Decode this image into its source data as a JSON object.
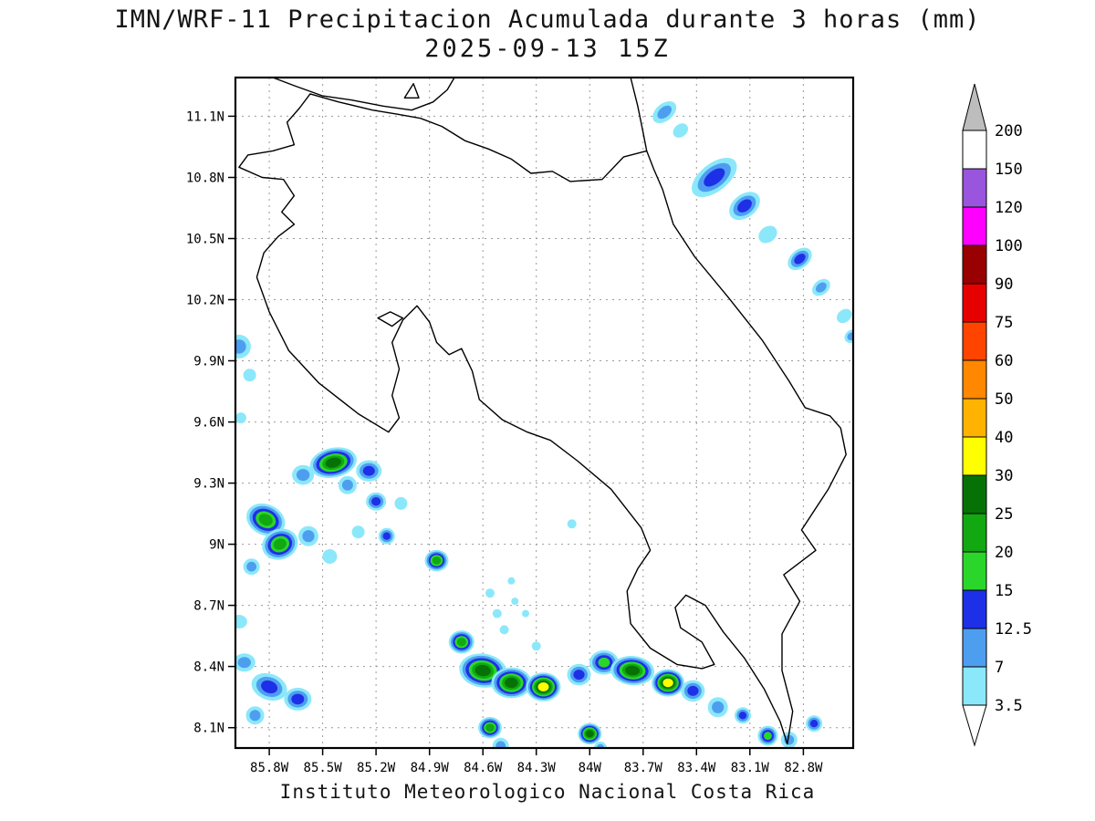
{
  "header": {
    "title": "IMN/WRF-11 Precipitacion Acumulada durante 3 horas (mm)",
    "subtitle": "2025-09-13 15Z"
  },
  "footer": {
    "credit": "Instituto Meteorologico Nacional Costa Rica"
  },
  "axes": {
    "lat_labels": [
      "11.1N",
      "10.8N",
      "10.5N",
      "10.2N",
      "9.9N",
      "9.6N",
      "9.3N",
      "9N",
      "8.7N",
      "8.4N",
      "8.1N"
    ],
    "lat_values": [
      11.1,
      10.8,
      10.5,
      10.2,
      9.9,
      9.6,
      9.3,
      9.0,
      8.7,
      8.4,
      8.1
    ],
    "lon_labels": [
      "85.8W",
      "85.5W",
      "85.2W",
      "84.9W",
      "84.6W",
      "84.3W",
      "84W",
      "83.7W",
      "83.4W",
      "83.1W",
      "82.8W"
    ],
    "lon_values": [
      85.8,
      85.5,
      85.2,
      84.9,
      84.6,
      84.3,
      84.0,
      83.7,
      83.4,
      83.1,
      82.8
    ]
  },
  "colorbar": {
    "labels": [
      "200",
      "150",
      "120",
      "100",
      "90",
      "75",
      "60",
      "50",
      "40",
      "30",
      "25",
      "20",
      "15",
      "12.5",
      "7",
      "3.5"
    ],
    "colors": [
      "#bdbdbd",
      "#ffffff",
      "#9955dd",
      "#ff00ff",
      "#990000",
      "#e60000",
      "#ff4400",
      "#ff8800",
      "#ffb300",
      "#ffff00",
      "#067206",
      "#11a811",
      "#2bd62b",
      "#1e2fe8",
      "#4e9ef0",
      "#8be8fa",
      "#ffffff"
    ]
  },
  "chart_data": {
    "type": "heatmap",
    "title": "IMN/WRF-11 Precipitacion Acumulada durante 3 horas (mm)",
    "valid_time": "2025-09-13 15Z",
    "units": "mm",
    "lat_tick_range": [
      8.1,
      11.1
    ],
    "lon_west_tick_range": [
      82.8,
      85.8
    ],
    "levels_mm": [
      3.5,
      7,
      12.5,
      15,
      20,
      25,
      30,
      40,
      50,
      60,
      75,
      90,
      100,
      120,
      150,
      200
    ],
    "cell_fields": [
      "lon_west_deg",
      "lat_north_deg",
      "radius_px",
      "aspect",
      "rotation_deg",
      "intensity_depth"
    ],
    "precip_cells": [
      [
        83.58,
        11.12,
        15,
        1.6,
        -40,
        2
      ],
      [
        83.49,
        11.03,
        9,
        1.3,
        -40,
        1
      ],
      [
        83.3,
        10.8,
        29,
        1.9,
        -38,
        3
      ],
      [
        83.13,
        10.66,
        19,
        1.5,
        -38,
        3
      ],
      [
        83.0,
        10.52,
        11,
        1.3,
        -38,
        1
      ],
      [
        82.82,
        10.4,
        15,
        1.5,
        -40,
        3
      ],
      [
        82.7,
        10.26,
        11,
        1.4,
        -40,
        2
      ],
      [
        82.57,
        10.12,
        9,
        1.3,
        -40,
        1
      ],
      [
        82.53,
        10.02,
        8,
        1.2,
        -40,
        2
      ],
      [
        85.97,
        9.97,
        13,
        1.0,
        0,
        2
      ],
      [
        85.91,
        9.83,
        7,
        1,
        0,
        1
      ],
      [
        85.96,
        9.62,
        6,
        1,
        0,
        1
      ],
      [
        85.44,
        9.4,
        26,
        1.6,
        -12,
        6
      ],
      [
        85.24,
        9.36,
        14,
        1.2,
        0,
        3
      ],
      [
        85.61,
        9.34,
        12,
        1.1,
        0,
        2
      ],
      [
        85.36,
        9.29,
        10,
        1,
        0,
        2
      ],
      [
        85.2,
        9.21,
        11,
        1.1,
        0,
        3
      ],
      [
        85.06,
        9.2,
        7,
        1,
        0,
        1
      ],
      [
        85.82,
        9.12,
        22,
        1.3,
        25,
        5
      ],
      [
        85.74,
        9.0,
        20,
        1.2,
        -20,
        5
      ],
      [
        85.58,
        9.04,
        11,
        1,
        0,
        2
      ],
      [
        85.9,
        8.89,
        9,
        1,
        0,
        2
      ],
      [
        85.46,
        8.94,
        8,
        1,
        0,
        1
      ],
      [
        85.14,
        9.04,
        9,
        1,
        0,
        3
      ],
      [
        85.3,
        9.06,
        7,
        1,
        0,
        1
      ],
      [
        84.86,
        8.92,
        13,
        1.1,
        0,
        5
      ],
      [
        84.56,
        8.76,
        5,
        1,
        0,
        1
      ],
      [
        84.52,
        8.66,
        5,
        1,
        0,
        1
      ],
      [
        84.48,
        8.58,
        5,
        1,
        0,
        1
      ],
      [
        84.1,
        9.1,
        5,
        1,
        0,
        1
      ],
      [
        85.97,
        8.62,
        9,
        1.2,
        0,
        1
      ],
      [
        85.94,
        8.42,
        12,
        1.2,
        0,
        2
      ],
      [
        85.8,
        8.3,
        20,
        1.4,
        20,
        3
      ],
      [
        85.64,
        8.24,
        15,
        1.2,
        0,
        3
      ],
      [
        85.88,
        8.16,
        10,
        1,
        0,
        2
      ],
      [
        84.72,
        8.52,
        14,
        1.1,
        0,
        5
      ],
      [
        84.6,
        8.38,
        26,
        1.4,
        8,
        6
      ],
      [
        84.44,
        8.32,
        22,
        1.3,
        0,
        6
      ],
      [
        84.26,
        8.3,
        19,
        1.2,
        0,
        7
      ],
      [
        84.06,
        8.36,
        13,
        1.1,
        0,
        3
      ],
      [
        83.92,
        8.42,
        16,
        1.2,
        0,
        4
      ],
      [
        83.76,
        8.38,
        24,
        1.5,
        5,
        6
      ],
      [
        83.56,
        8.32,
        18,
        1.2,
        0,
        7
      ],
      [
        83.42,
        8.28,
        13,
        1.1,
        0,
        3
      ],
      [
        83.28,
        8.2,
        11,
        1,
        0,
        2
      ],
      [
        83.14,
        8.16,
        9,
        1,
        0,
        3
      ],
      [
        83.0,
        8.06,
        11,
        1,
        0,
        4
      ],
      [
        82.88,
        8.04,
        9,
        1,
        0,
        2
      ],
      [
        82.74,
        8.12,
        9,
        1,
        0,
        3
      ],
      [
        84.56,
        8.1,
        13,
        1.1,
        0,
        5
      ],
      [
        84.5,
        8.01,
        9,
        1,
        0,
        2
      ],
      [
        84.0,
        8.07,
        13,
        1.1,
        0,
        6
      ],
      [
        83.94,
        8.0,
        7,
        1,
        0,
        2
      ],
      [
        84.36,
        8.66,
        4,
        1,
        0,
        1
      ],
      [
        84.42,
        8.72,
        4,
        1,
        0,
        1
      ],
      [
        84.44,
        8.82,
        4,
        1,
        0,
        1
      ],
      [
        84.3,
        8.5,
        5,
        1,
        0,
        1
      ]
    ]
  }
}
